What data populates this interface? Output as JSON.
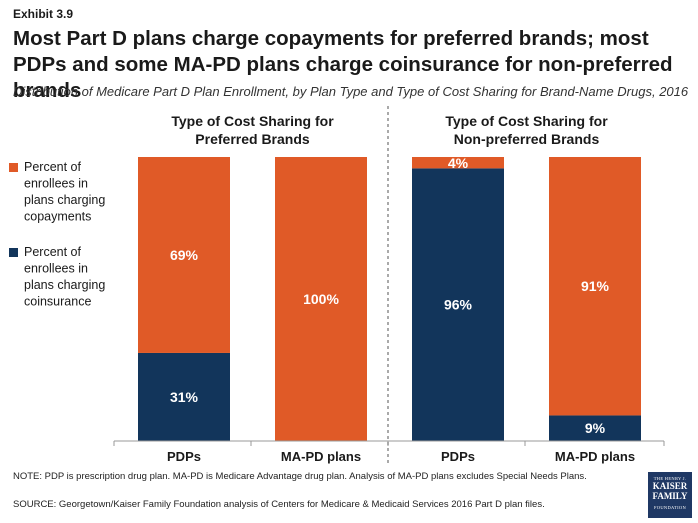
{
  "header": {
    "exhibit": "Exhibit 3.9",
    "title": "Most Part D plans charge copayments for preferred brands; most PDPs and some MA-PD plans charge coinsurance for non-preferred brands",
    "subtitle": "Distribution of Medicare Part D Plan Enrollment, by Plan Type and Type of Cost Sharing for Brand-Name Drugs, 2016"
  },
  "colors": {
    "copayments": "#E05A27",
    "coinsurance": "#12355B",
    "divider": "#555555"
  },
  "legend": [
    {
      "label_lines": [
        "Percent of",
        "enrollees in",
        "plans charging",
        "copayments"
      ],
      "color": "#E05A27"
    },
    {
      "label_lines": [
        "Percent of",
        "enrollees in",
        "plans charging",
        "coinsurance"
      ],
      "color": "#12355B"
    }
  ],
  "chart_data": {
    "type": "bar",
    "stacked": true,
    "ylim": [
      0,
      100
    ],
    "groups": [
      {
        "title_lines": [
          "Type of Cost Sharing for",
          "Preferred Brands"
        ],
        "categories": [
          "PDPs",
          "MA-PD plans"
        ]
      },
      {
        "title_lines": [
          "Type of Cost Sharing for",
          "Non-preferred Brands"
        ],
        "categories": [
          "PDPs",
          "MA-PD plans"
        ]
      }
    ],
    "categories": [
      "PDPs",
      "MA-PD plans",
      "PDPs",
      "MA-PD plans"
    ],
    "series": [
      {
        "name": "Percent of enrollees in plans charging coinsurance",
        "values": [
          31,
          0,
          96,
          9
        ],
        "labels": [
          "31%",
          "",
          "96%",
          "9%"
        ]
      },
      {
        "name": "Percent of enrollees in plans charging copayments",
        "values": [
          69,
          100,
          4,
          91
        ],
        "labels": [
          "69%",
          "100%",
          "4%",
          "91%"
        ]
      }
    ]
  },
  "footnotes": {
    "note": "NOTE: PDP is prescription drug plan. MA-PD is Medicare Advantage drug plan. Analysis of MA-PD plans excludes Special Needs Plans.",
    "source": "SOURCE: Georgetown/Kaiser Family Foundation analysis of Centers for Medicare & Medicaid Services 2016 Part D plan files."
  },
  "logo": {
    "line1": "THE HENRY J.",
    "line2": "KAISER",
    "line3": "FAMILY",
    "line4": "FOUNDATION"
  }
}
